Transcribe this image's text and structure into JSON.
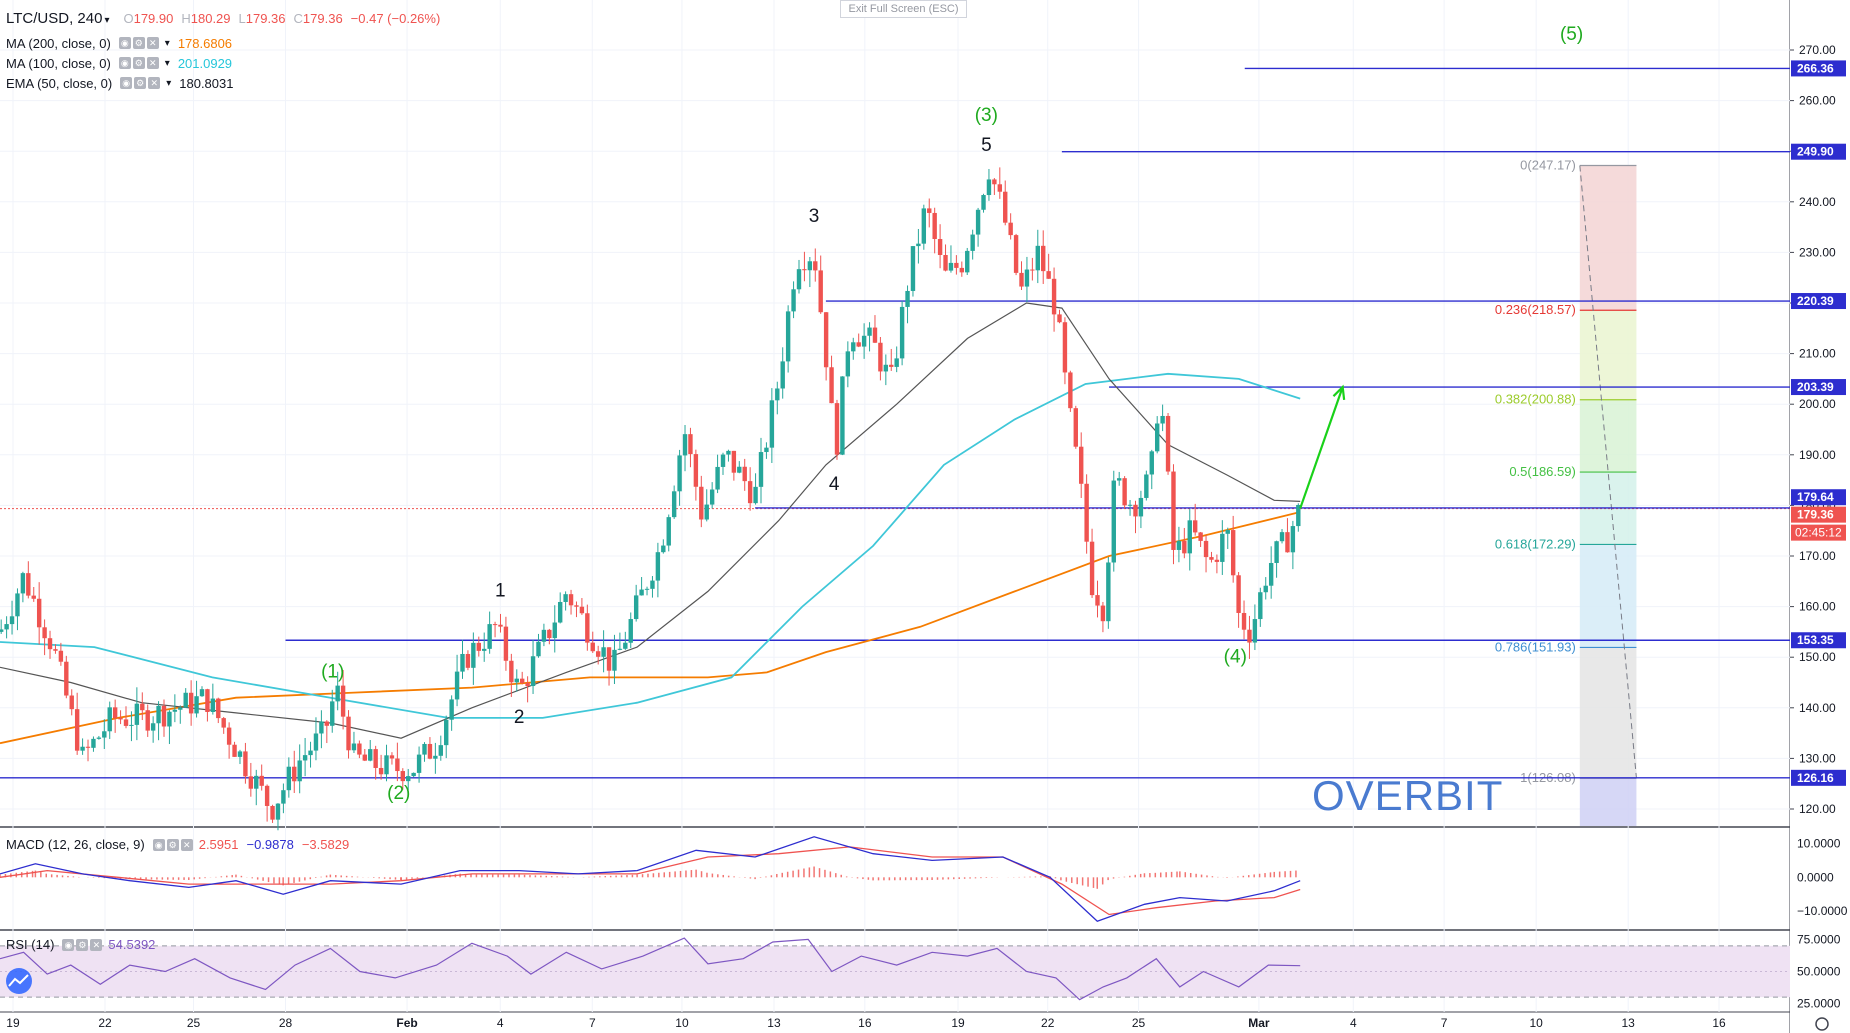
{
  "header": {
    "symbol": "LTC/USD",
    "interval": "240",
    "open_label": "O",
    "open": "179.90",
    "high_label": "H",
    "high": "180.29",
    "low_label": "L",
    "low": "179.36",
    "close_label": "C",
    "close": "179.36",
    "change": "−0.47 (−0.26%)"
  },
  "exit_fullscreen": "Exit Full Screen (ESC)",
  "indicators": [
    {
      "label": "MA (200, close, 0)",
      "value": "178.6806",
      "color": "#f57c00"
    },
    {
      "label": "MA (100, close, 0)",
      "value": "201.0929",
      "color": "#26c6da"
    },
    {
      "label": "EMA (50, close, 0)",
      "value": "180.8031",
      "color": "#131722"
    }
  ],
  "watermark": "OVERBIT",
  "chart_data": {
    "type": "candlestick",
    "y_axis_ticks": [
      "270.00",
      "260.00",
      "250.00",
      "240.00",
      "230.00",
      "220.00",
      "210.00",
      "200.00",
      "190.00",
      "180.00",
      "170.00",
      "160.00",
      "150.00",
      "140.00",
      "130.00",
      "120.00"
    ],
    "x_axis_ticks": [
      "19",
      "22",
      "25",
      "28",
      "Feb",
      "4",
      "7",
      "10",
      "13",
      "16",
      "19",
      "22",
      "25",
      "Mar",
      "4",
      "7",
      "10",
      "13",
      "16"
    ],
    "price_range": [
      110,
      275
    ],
    "candle_path": [
      {
        "x": 0,
        "y": 155
      },
      {
        "x": 20,
        "y": 166
      },
      {
        "x": 45,
        "y": 152
      },
      {
        "x": 70,
        "y": 130
      },
      {
        "x": 95,
        "y": 138
      },
      {
        "x": 120,
        "y": 138
      },
      {
        "x": 150,
        "y": 140
      },
      {
        "x": 175,
        "y": 142
      },
      {
        "x": 200,
        "y": 132
      },
      {
        "x": 230,
        "y": 120
      },
      {
        "x": 255,
        "y": 130
      },
      {
        "x": 275,
        "y": 135
      },
      {
        "x": 285,
        "y": 144
      },
      {
        "x": 300,
        "y": 130
      },
      {
        "x": 330,
        "y": 128
      },
      {
        "x": 350,
        "y": 128
      },
      {
        "x": 370,
        "y": 133
      },
      {
        "x": 395,
        "y": 150
      },
      {
        "x": 420,
        "y": 156
      },
      {
        "x": 440,
        "y": 143
      },
      {
        "x": 465,
        "y": 155
      },
      {
        "x": 480,
        "y": 163
      },
      {
        "x": 500,
        "y": 155
      },
      {
        "x": 520,
        "y": 148
      },
      {
        "x": 540,
        "y": 160
      },
      {
        "x": 560,
        "y": 172
      },
      {
        "x": 580,
        "y": 195
      },
      {
        "x": 595,
        "y": 178
      },
      {
        "x": 615,
        "y": 190
      },
      {
        "x": 640,
        "y": 182
      },
      {
        "x": 660,
        "y": 205
      },
      {
        "x": 675,
        "y": 229
      },
      {
        "x": 690,
        "y": 230
      },
      {
        "x": 700,
        "y": 210
      },
      {
        "x": 708,
        "y": 190
      },
      {
        "x": 720,
        "y": 215
      },
      {
        "x": 740,
        "y": 212
      },
      {
        "x": 755,
        "y": 204
      },
      {
        "x": 770,
        "y": 225
      },
      {
        "x": 785,
        "y": 239
      },
      {
        "x": 800,
        "y": 225
      },
      {
        "x": 815,
        "y": 228
      },
      {
        "x": 825,
        "y": 236
      },
      {
        "x": 838,
        "y": 247
      },
      {
        "x": 850,
        "y": 238
      },
      {
        "x": 865,
        "y": 222
      },
      {
        "x": 880,
        "y": 230
      },
      {
        "x": 895,
        "y": 219
      },
      {
        "x": 905,
        "y": 200
      },
      {
        "x": 915,
        "y": 185
      },
      {
        "x": 925,
        "y": 165
      },
      {
        "x": 935,
        "y": 160
      },
      {
        "x": 945,
        "y": 185
      },
      {
        "x": 960,
        "y": 180
      },
      {
        "x": 975,
        "y": 185
      },
      {
        "x": 983,
        "y": 204
      },
      {
        "x": 995,
        "y": 170
      },
      {
        "x": 1010,
        "y": 175
      },
      {
        "x": 1025,
        "y": 168
      },
      {
        "x": 1040,
        "y": 175
      },
      {
        "x": 1050,
        "y": 158
      },
      {
        "x": 1060,
        "y": 155
      },
      {
        "x": 1075,
        "y": 168
      },
      {
        "x": 1090,
        "y": 173
      },
      {
        "x": 1102,
        "y": 179.4
      }
    ],
    "ema50_path": [
      {
        "x": 0,
        "y": 148
      },
      {
        "x": 60,
        "y": 145
      },
      {
        "x": 120,
        "y": 141
      },
      {
        "x": 200,
        "y": 139
      },
      {
        "x": 280,
        "y": 137
      },
      {
        "x": 340,
        "y": 134
      },
      {
        "x": 400,
        "y": 140
      },
      {
        "x": 480,
        "y": 147
      },
      {
        "x": 540,
        "y": 152
      },
      {
        "x": 600,
        "y": 163
      },
      {
        "x": 660,
        "y": 177
      },
      {
        "x": 700,
        "y": 188
      },
      {
        "x": 760,
        "y": 200
      },
      {
        "x": 820,
        "y": 213
      },
      {
        "x": 870,
        "y": 220
      },
      {
        "x": 900,
        "y": 219
      },
      {
        "x": 940,
        "y": 205
      },
      {
        "x": 990,
        "y": 192
      },
      {
        "x": 1040,
        "y": 186
      },
      {
        "x": 1080,
        "y": 181
      },
      {
        "x": 1102,
        "y": 180.8
      }
    ],
    "ma100_path": [
      {
        "x": 0,
        "y": 153
      },
      {
        "x": 80,
        "y": 152
      },
      {
        "x": 180,
        "y": 146
      },
      {
        "x": 280,
        "y": 142
      },
      {
        "x": 380,
        "y": 138
      },
      {
        "x": 460,
        "y": 138
      },
      {
        "x": 540,
        "y": 141
      },
      {
        "x": 620,
        "y": 146
      },
      {
        "x": 680,
        "y": 160
      },
      {
        "x": 740,
        "y": 172
      },
      {
        "x": 800,
        "y": 188
      },
      {
        "x": 860,
        "y": 197
      },
      {
        "x": 920,
        "y": 204
      },
      {
        "x": 990,
        "y": 206
      },
      {
        "x": 1050,
        "y": 205
      },
      {
        "x": 1102,
        "y": 201.1
      }
    ],
    "ma200_path": [
      {
        "x": 0,
        "y": 133
      },
      {
        "x": 100,
        "y": 138
      },
      {
        "x": 200,
        "y": 142
      },
      {
        "x": 300,
        "y": 143
      },
      {
        "x": 400,
        "y": 144
      },
      {
        "x": 500,
        "y": 146
      },
      {
        "x": 600,
        "y": 146
      },
      {
        "x": 650,
        "y": 147
      },
      {
        "x": 700,
        "y": 151
      },
      {
        "x": 780,
        "y": 156
      },
      {
        "x": 860,
        "y": 163
      },
      {
        "x": 940,
        "y": 170
      },
      {
        "x": 1020,
        "y": 174
      },
      {
        "x": 1102,
        "y": 178.7
      }
    ],
    "horizontal_levels": [
      {
        "price": 266.36,
        "label": "266.36",
        "x_start": 1055
      },
      {
        "price": 249.9,
        "label": "249.90",
        "x_start": 900
      },
      {
        "price": 220.39,
        "label": "220.39",
        "x_start": 700
      },
      {
        "price": 203.39,
        "label": "203.39",
        "x_start": 940
      },
      {
        "price": 153.35,
        "label": "153.35",
        "x_start": 242
      },
      {
        "price": 126.16,
        "label": "126.16",
        "x_start": 0
      }
    ],
    "last_price_labels": [
      {
        "price": 179.64,
        "label": "179.64",
        "color": "#2d2dcf"
      },
      {
        "price": 179.36,
        "label": "179.36",
        "color": "#ef5350"
      }
    ],
    "countdown": "02:45:12",
    "fib_levels": [
      {
        "ratio": 0,
        "label": "0(247.17)",
        "price": 247.17,
        "color": "#9598a1",
        "fill": "#f3d3d3"
      },
      {
        "ratio": 0.236,
        "label": "0.236(218.57)",
        "price": 218.57,
        "color": "#e53935",
        "fill": "#eaf5d0"
      },
      {
        "ratio": 0.382,
        "label": "0.382(200.88)",
        "price": 200.88,
        "color": "#9ccc2c",
        "fill": "#d8f2d5"
      },
      {
        "ratio": 0.5,
        "label": "0.5(186.59)",
        "price": 186.59,
        "color": "#43c043",
        "fill": "#d4f1ea"
      },
      {
        "ratio": 0.618,
        "label": "0.618(172.29)",
        "price": 172.29,
        "color": "#26a69a",
        "fill": "#d5ebf7"
      },
      {
        "ratio": 0.786,
        "label": "0.786(151.93)",
        "price": 151.93,
        "color": "#3f8fd2",
        "fill": "#e4e4e4"
      },
      {
        "ratio": 1,
        "label": "1(126.08)",
        "price": 126.08,
        "color": "#9598a1",
        "fill": "#cfd0f4"
      }
    ],
    "wave_labels": [
      {
        "text": "(1)",
        "x": 282,
        "price": 146,
        "color": "#1faa1f"
      },
      {
        "text": "(2)",
        "x": 338,
        "price": 122,
        "color": "#1faa1f"
      },
      {
        "text": "(3)",
        "x": 836,
        "price": 256,
        "color": "#1faa1f"
      },
      {
        "text": "(4)",
        "x": 1047,
        "price": 149,
        "color": "#1faa1f"
      },
      {
        "text": "(5)",
        "x": 1332,
        "price": 272,
        "color": "#1faa1f"
      },
      {
        "text": "1",
        "x": 424,
        "price": 162,
        "color": "#131722"
      },
      {
        "text": "2",
        "x": 440,
        "price": 137,
        "color": "#131722"
      },
      {
        "text": "3",
        "x": 690,
        "price": 236,
        "color": "#131722"
      },
      {
        "text": "4",
        "x": 707,
        "price": 183,
        "color": "#131722"
      },
      {
        "text": "5",
        "x": 836,
        "price": 250,
        "color": "#131722"
      }
    ],
    "projection_arrow": {
      "from": {
        "x": 1102,
        "price": 179.4
      },
      "to": {
        "x": 1138,
        "price": 203.4
      }
    },
    "macd": {
      "label": "MACD (12, 26, close, 9)",
      "values": [
        "2.5951",
        "−0.9878",
        "−3.5829"
      ],
      "value_colors": [
        "#ef5350",
        "#2d2dcf",
        "#ef5350"
      ],
      "ticks": [
        "10.0000",
        "0.0000",
        "−10.0000"
      ],
      "range": [
        -15,
        14
      ],
      "macd_path": [
        {
          "x": 0,
          "y": 1
        },
        {
          "x": 30,
          "y": 4
        },
        {
          "x": 70,
          "y": 1
        },
        {
          "x": 110,
          "y": -1
        },
        {
          "x": 160,
          "y": -3
        },
        {
          "x": 200,
          "y": -1
        },
        {
          "x": 240,
          "y": -5
        },
        {
          "x": 280,
          "y": -1
        },
        {
          "x": 340,
          "y": -2
        },
        {
          "x": 390,
          "y": 2
        },
        {
          "x": 440,
          "y": 2
        },
        {
          "x": 490,
          "y": 1
        },
        {
          "x": 540,
          "y": 2
        },
        {
          "x": 590,
          "y": 8
        },
        {
          "x": 640,
          "y": 6
        },
        {
          "x": 690,
          "y": 12
        },
        {
          "x": 740,
          "y": 7
        },
        {
          "x": 790,
          "y": 5
        },
        {
          "x": 850,
          "y": 6
        },
        {
          "x": 890,
          "y": 0
        },
        {
          "x": 930,
          "y": -13
        },
        {
          "x": 970,
          "y": -8
        },
        {
          "x": 1000,
          "y": -6
        },
        {
          "x": 1040,
          "y": -7
        },
        {
          "x": 1080,
          "y": -4
        },
        {
          "x": 1102,
          "y": -1
        }
      ],
      "signal_path": [
        {
          "x": 0,
          "y": 0
        },
        {
          "x": 40,
          "y": 2
        },
        {
          "x": 100,
          "y": 0
        },
        {
          "x": 160,
          "y": -2
        },
        {
          "x": 220,
          "y": -2
        },
        {
          "x": 280,
          "y": -2
        },
        {
          "x": 340,
          "y": -1
        },
        {
          "x": 400,
          "y": 1
        },
        {
          "x": 470,
          "y": 1
        },
        {
          "x": 540,
          "y": 1
        },
        {
          "x": 600,
          "y": 6
        },
        {
          "x": 660,
          "y": 7
        },
        {
          "x": 720,
          "y": 9
        },
        {
          "x": 790,
          "y": 6
        },
        {
          "x": 850,
          "y": 6
        },
        {
          "x": 900,
          "y": -2
        },
        {
          "x": 940,
          "y": -11
        },
        {
          "x": 980,
          "y": -9
        },
        {
          "x": 1030,
          "y": -7
        },
        {
          "x": 1080,
          "y": -6
        },
        {
          "x": 1102,
          "y": -3.6
        }
      ]
    },
    "rsi": {
      "label": "RSI (14)",
      "value": "54.5392",
      "value_color": "#7e57c2",
      "ticks": [
        "75.0000",
        "50.0000",
        "25.0000"
      ],
      "range": [
        20,
        80
      ],
      "band": [
        30,
        70
      ],
      "path": [
        {
          "x": 0,
          "y": 60
        },
        {
          "x": 20,
          "y": 65
        },
        {
          "x": 40,
          "y": 48
        },
        {
          "x": 60,
          "y": 55
        },
        {
          "x": 85,
          "y": 40
        },
        {
          "x": 110,
          "y": 55
        },
        {
          "x": 140,
          "y": 50
        },
        {
          "x": 165,
          "y": 60
        },
        {
          "x": 195,
          "y": 45
        },
        {
          "x": 225,
          "y": 36
        },
        {
          "x": 250,
          "y": 55
        },
        {
          "x": 280,
          "y": 68
        },
        {
          "x": 305,
          "y": 50
        },
        {
          "x": 335,
          "y": 45
        },
        {
          "x": 370,
          "y": 55
        },
        {
          "x": 400,
          "y": 72
        },
        {
          "x": 430,
          "y": 62
        },
        {
          "x": 450,
          "y": 48
        },
        {
          "x": 480,
          "y": 65
        },
        {
          "x": 510,
          "y": 52
        },
        {
          "x": 545,
          "y": 62
        },
        {
          "x": 580,
          "y": 76
        },
        {
          "x": 600,
          "y": 56
        },
        {
          "x": 630,
          "y": 60
        },
        {
          "x": 655,
          "y": 73
        },
        {
          "x": 685,
          "y": 75
        },
        {
          "x": 705,
          "y": 50
        },
        {
          "x": 730,
          "y": 62
        },
        {
          "x": 760,
          "y": 55
        },
        {
          "x": 790,
          "y": 65
        },
        {
          "x": 820,
          "y": 62
        },
        {
          "x": 845,
          "y": 68
        },
        {
          "x": 870,
          "y": 50
        },
        {
          "x": 895,
          "y": 45
        },
        {
          "x": 915,
          "y": 28
        },
        {
          "x": 935,
          "y": 38
        },
        {
          "x": 955,
          "y": 45
        },
        {
          "x": 980,
          "y": 60
        },
        {
          "x": 1000,
          "y": 38
        },
        {
          "x": 1020,
          "y": 50
        },
        {
          "x": 1050,
          "y": 38
        },
        {
          "x": 1075,
          "y": 55
        },
        {
          "x": 1102,
          "y": 54.5
        }
      ]
    }
  },
  "colors": {
    "up": "#26a69a",
    "down": "#ef5350",
    "level_line": "#2d2dcf",
    "arrow": "#19d119",
    "ma200": "#f57c00",
    "ma100": "#3fc7d8",
    "ema50": "#555555",
    "macd": "#2d2dcf",
    "signal": "#ef5350",
    "rsi": "#7e57c2"
  }
}
